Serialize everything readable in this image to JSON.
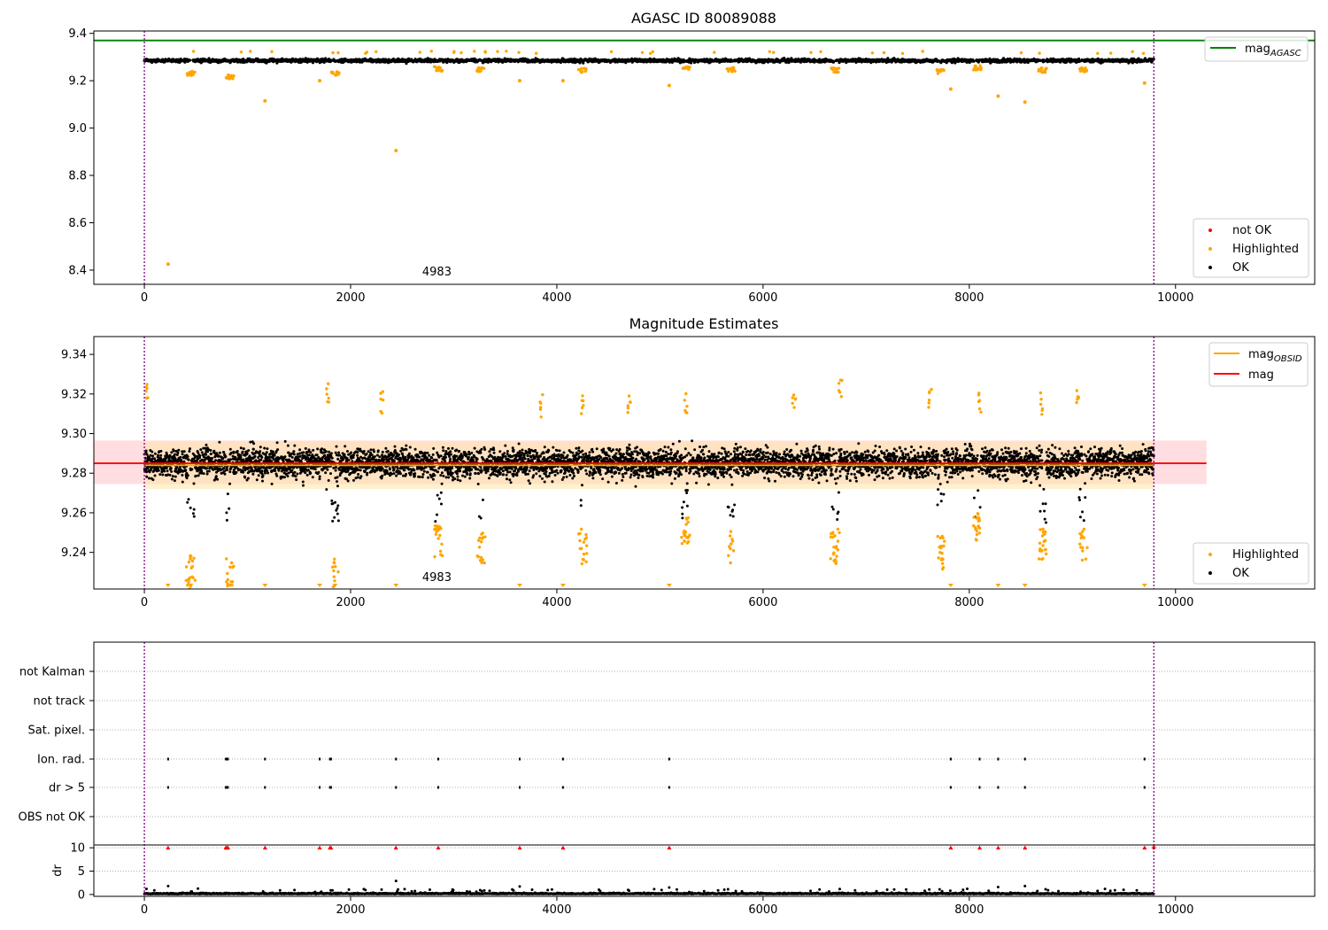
{
  "chart_data": [
    {
      "type": "scatter",
      "title": "AGASC ID 80089088",
      "xlim": [
        -490,
        11350
      ],
      "ylim": [
        8.34,
        9.41
      ],
      "xticks": [
        0,
        2000,
        4000,
        6000,
        8000,
        10000
      ],
      "yticks": [
        8.4,
        8.6,
        8.8,
        9.0,
        9.2,
        9.4
      ],
      "ytick_labels": [
        "8.4",
        "8.6",
        "8.8",
        "9.0",
        "9.2",
        "9.4"
      ],
      "reference_line": {
        "name": "mag_AGASC",
        "y": 9.37,
        "color": "#008000"
      },
      "vlines": [
        0,
        9790
      ],
      "annotation": {
        "text": "4983",
        "x": 4983,
        "y": 8.37
      },
      "baseline_band": {
        "y_center": 9.285,
        "y_spread": 0.012
      },
      "dips": [
        [
          450,
          9.23
        ],
        [
          830,
          9.215
        ],
        [
          1850,
          9.23
        ],
        [
          2850,
          9.25
        ],
        [
          3260,
          9.245
        ],
        [
          4250,
          9.245
        ],
        [
          5250,
          9.255
        ],
        [
          5690,
          9.245
        ],
        [
          6700,
          9.245
        ],
        [
          7720,
          9.24
        ],
        [
          8080,
          9.255
        ],
        [
          8710,
          9.245
        ],
        [
          9100,
          9.245
        ]
      ],
      "outliers": [
        [
          230,
          8.425
        ],
        [
          1170,
          9.115
        ],
        [
          1700,
          9.2
        ],
        [
          2440,
          8.905
        ],
        [
          3640,
          9.2
        ],
        [
          4060,
          9.2
        ],
        [
          5090,
          9.18
        ],
        [
          7820,
          9.165
        ],
        [
          8280,
          9.135
        ],
        [
          8540,
          9.11
        ],
        [
          9700,
          9.19
        ]
      ],
      "legend_series": {
        "position": "lower-right",
        "entries": [
          {
            "label": "not OK",
            "color": "#ff0000"
          },
          {
            "label": "Highlighted",
            "color": "#ffa500"
          },
          {
            "label": "OK",
            "color": "#000000"
          }
        ]
      },
      "legend_lines": {
        "position": "upper-right",
        "entries": [
          {
            "label": "mag",
            "sub": "AGASC",
            "color": "#008000"
          }
        ]
      }
    },
    {
      "type": "scatter",
      "title": "Magnitude Estimates",
      "xlim": [
        -490,
        11350
      ],
      "ylim": [
        9.2215,
        9.349
      ],
      "xticks": [
        0,
        2000,
        4000,
        6000,
        8000,
        10000
      ],
      "yticks": [
        9.24,
        9.26,
        9.28,
        9.3,
        9.32,
        9.34
      ],
      "ytick_labels": [
        "9.24",
        "9.26",
        "9.28",
        "9.30",
        "9.32",
        "9.34"
      ],
      "mag_line": {
        "name": "mag",
        "y": 9.285,
        "color": "#ff0000",
        "x_range": [
          -490,
          10300
        ]
      },
      "mag_band": {
        "y_low": 9.2745,
        "y_high": 9.2965,
        "color": "#ffb3bd"
      },
      "mag_obsid_line": {
        "name": "mag_OBSID",
        "y": 9.284,
        "color": "#ffa500",
        "x_range": [
          0,
          9790
        ]
      },
      "mag_obsid_band": {
        "y_low": 9.272,
        "y_high": 9.296,
        "color": "#ffe5a8"
      },
      "vlines": [
        0,
        9790
      ],
      "annotation": {
        "text": "4983",
        "x": 4983,
        "y": 9.2255
      },
      "scatter_spread": 0.011,
      "dips": [
        [
          450,
          9.23
        ],
        [
          830,
          9.228
        ],
        [
          1850,
          9.228
        ],
        [
          2850,
          9.245
        ],
        [
          3260,
          9.243
        ],
        [
          4250,
          9.243
        ],
        [
          5250,
          9.252
        ],
        [
          5690,
          9.243
        ],
        [
          6700,
          9.243
        ],
        [
          7720,
          9.24
        ],
        [
          8080,
          9.252
        ],
        [
          8710,
          9.243
        ],
        [
          9100,
          9.243
        ]
      ],
      "highs": [
        [
          20,
          9.325
        ],
        [
          1780,
          9.327
        ],
        [
          2300,
          9.322
        ],
        [
          3850,
          9.32
        ],
        [
          4250,
          9.32
        ],
        [
          4700,
          9.321
        ],
        [
          5250,
          9.321
        ],
        [
          6300,
          9.32
        ],
        [
          6750,
          9.327
        ],
        [
          7620,
          9.325
        ],
        [
          8100,
          9.322
        ],
        [
          8700,
          9.321
        ],
        [
          9050,
          9.322
        ]
      ],
      "offscale_markers": [
        230,
        450,
        830,
        1170,
        1700,
        1850,
        2440,
        3640,
        4060,
        5090,
        7820,
        8280,
        8540,
        9700
      ],
      "legend_series": {
        "position": "lower-right",
        "entries": [
          {
            "label": "Highlighted",
            "color": "#ffa500"
          },
          {
            "label": "OK",
            "color": "#000000"
          }
        ]
      },
      "legend_lines": {
        "position": "upper-right",
        "entries": [
          {
            "label": "mag",
            "sub": "OBSID",
            "color": "#ffa500"
          },
          {
            "label": "mag",
            "sub": "",
            "color": "#ff0000"
          }
        ]
      }
    },
    {
      "type": "scatter",
      "title": "",
      "xlim": [
        -490,
        11350
      ],
      "xticks": [
        0,
        2000,
        4000,
        6000,
        8000,
        10000
      ],
      "flag_rows": [
        "not Kalman",
        "not track",
        "Sat. pixel.",
        "Ion. rad.",
        "dr > 5",
        "OBS not OK"
      ],
      "flagged_x": [
        230,
        790,
        800,
        810,
        1170,
        1700,
        1800,
        1810,
        2440,
        2850,
        3640,
        4060,
        5090,
        7820,
        8100,
        8280,
        8540,
        9700
      ],
      "flagged_rows": [
        "Ion. rad.",
        "dr > 5"
      ],
      "dr_axis": {
        "ylabel": "dr",
        "ylim": [
          -0.4,
          10.6
        ],
        "yticks": [
          0,
          5,
          10
        ],
        "ytick_labels": [
          "0",
          "5",
          "10"
        ],
        "cap": 10,
        "cap_color": "#ff0000"
      },
      "dr_outliers": [
        [
          230,
          1.8
        ],
        [
          2440,
          2.9
        ],
        [
          3640,
          1.7
        ],
        [
          5090,
          1.5
        ],
        [
          8280,
          1.6
        ],
        [
          8540,
          1.8
        ]
      ],
      "vlines": [
        0,
        9790
      ]
    }
  ],
  "colors": {
    "ok": "#000000",
    "highlighted": "#ffa500",
    "not_ok": "#ff0000",
    "vline": "#800080",
    "grid": "#b0b0b0"
  }
}
